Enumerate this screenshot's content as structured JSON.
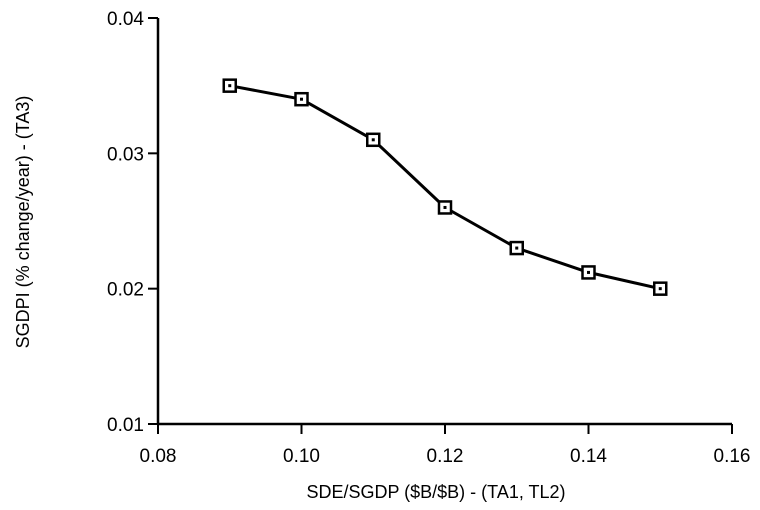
{
  "chart_data": {
    "type": "line",
    "title": "",
    "xlabel": "SDE/SGDP ($B/$B) - (TA1, TL2)",
    "ylabel": "SGDPI (% change/year) - (TA3)",
    "xlim": [
      0.08,
      0.16
    ],
    "ylim": [
      0.01,
      0.04
    ],
    "x_ticks": [
      "0.08",
      "0.10",
      "0.12",
      "0.14",
      "0.16"
    ],
    "x_tick_values": [
      0.08,
      0.1,
      0.12,
      0.14,
      0.16
    ],
    "y_ticks": [
      "0.01",
      "0.02",
      "0.03",
      "0.04"
    ],
    "y_tick_values": [
      0.01,
      0.02,
      0.03,
      0.04
    ],
    "grid": false,
    "marker": "hollow-square",
    "series": [
      {
        "x": [
          0.09,
          0.1,
          0.11,
          0.12,
          0.13,
          0.14,
          0.15
        ],
        "y": [
          0.035,
          0.034,
          0.031,
          0.026,
          0.023,
          0.0212,
          0.02
        ]
      }
    ]
  }
}
